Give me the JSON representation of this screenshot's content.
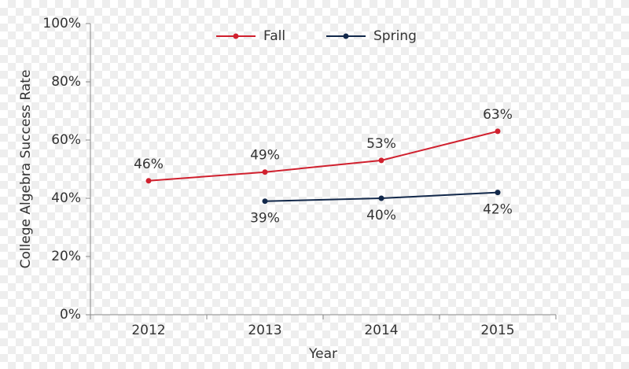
{
  "chart_data": {
    "type": "line",
    "y_label": "College Algebra Success Rate",
    "x_label": "Year",
    "categories": [
      "2012",
      "2013",
      "2014",
      "2015"
    ],
    "series": [
      {
        "name": "Fall",
        "color": "#d0202e",
        "values": [
          46,
          49,
          53,
          63
        ],
        "value_labels": [
          "46%",
          "49%",
          "53%",
          "63%"
        ]
      },
      {
        "name": "Spring",
        "color": "#12284a",
        "values": [
          null,
          39,
          40,
          42
        ],
        "value_labels": [
          null,
          "39%",
          "40%",
          "42%"
        ]
      }
    ],
    "ylim": [
      0,
      100
    ],
    "yticks": [
      {
        "value": 0,
        "label": "0%"
      },
      {
        "value": 20,
        "label": "20%"
      },
      {
        "value": 40,
        "label": "40%"
      },
      {
        "value": 60,
        "label": "60%"
      },
      {
        "value": 80,
        "label": "80%"
      },
      {
        "value": 100,
        "label": "100%"
      }
    ],
    "legend": "top"
  }
}
